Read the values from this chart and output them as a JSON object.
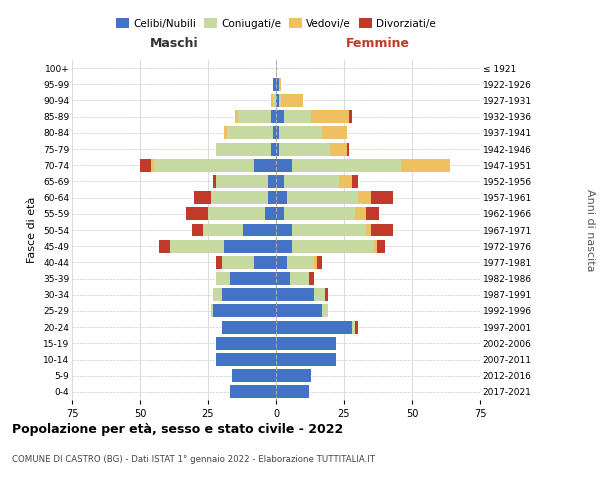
{
  "age_groups": [
    "0-4",
    "5-9",
    "10-14",
    "15-19",
    "20-24",
    "25-29",
    "30-34",
    "35-39",
    "40-44",
    "45-49",
    "50-54",
    "55-59",
    "60-64",
    "65-69",
    "70-74",
    "75-79",
    "80-84",
    "85-89",
    "90-94",
    "95-99",
    "100+"
  ],
  "birth_years": [
    "2017-2021",
    "2012-2016",
    "2007-2011",
    "2002-2006",
    "1997-2001",
    "1992-1996",
    "1987-1991",
    "1982-1986",
    "1977-1981",
    "1972-1976",
    "1967-1971",
    "1962-1966",
    "1957-1961",
    "1952-1956",
    "1947-1951",
    "1942-1946",
    "1937-1941",
    "1932-1936",
    "1927-1931",
    "1922-1926",
    "≤ 1921"
  ],
  "male": {
    "celibi": [
      17,
      16,
      22,
      22,
      20,
      23,
      20,
      17,
      8,
      19,
      12,
      4,
      3,
      3,
      8,
      2,
      1,
      2,
      0,
      1,
      0
    ],
    "coniugati": [
      0,
      0,
      0,
      0,
      0,
      1,
      3,
      5,
      12,
      20,
      15,
      21,
      21,
      19,
      37,
      20,
      17,
      12,
      1,
      0,
      0
    ],
    "vedovi": [
      0,
      0,
      0,
      0,
      0,
      0,
      0,
      0,
      0,
      0,
      0,
      0,
      0,
      0,
      1,
      0,
      1,
      1,
      1,
      0,
      0
    ],
    "divorziati": [
      0,
      0,
      0,
      0,
      0,
      0,
      0,
      0,
      2,
      4,
      4,
      8,
      6,
      1,
      4,
      0,
      0,
      0,
      0,
      0,
      0
    ]
  },
  "female": {
    "nubili": [
      12,
      13,
      22,
      22,
      28,
      17,
      14,
      5,
      4,
      6,
      6,
      3,
      4,
      3,
      6,
      1,
      1,
      3,
      1,
      1,
      0
    ],
    "coniugate": [
      0,
      0,
      0,
      0,
      1,
      2,
      4,
      7,
      10,
      30,
      27,
      26,
      26,
      20,
      40,
      19,
      16,
      10,
      1,
      0,
      0
    ],
    "vedove": [
      0,
      0,
      0,
      0,
      0,
      0,
      0,
      0,
      1,
      1,
      2,
      4,
      5,
      5,
      18,
      6,
      9,
      14,
      8,
      1,
      0
    ],
    "divorziate": [
      0,
      0,
      0,
      0,
      1,
      0,
      1,
      2,
      2,
      3,
      8,
      5,
      8,
      2,
      0,
      1,
      0,
      1,
      0,
      0,
      0
    ]
  },
  "colors": {
    "celibi": "#4472c4",
    "coniugati": "#c5d9a0",
    "vedovi": "#f0c060",
    "divorziati": "#c0392b"
  },
  "xlim": 75,
  "title": "Popolazione per età, sesso e stato civile - 2022",
  "subtitle": "COMUNE DI CASTRO (BG) - Dati ISTAT 1° gennaio 2022 - Elaborazione TUTTITALIA.IT",
  "ylabel_left": "Fasce di età",
  "ylabel_right": "Anni di nascita",
  "xlabel_left": "Maschi",
  "xlabel_right": "Femmine",
  "maschi_color": "#333333",
  "femmine_color": "#c0392b",
  "background_color": "#ffffff"
}
